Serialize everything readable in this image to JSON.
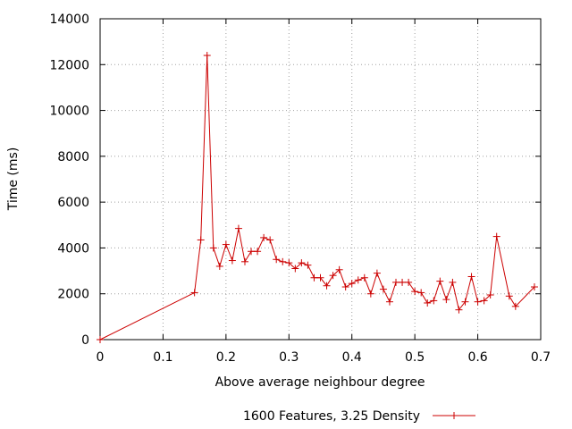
{
  "chart_data": {
    "type": "line",
    "title": "",
    "xlabel": "Above average neighbour degree",
    "ylabel": "Time (ms)",
    "xlim": [
      0,
      0.7
    ],
    "ylim": [
      0,
      14000
    ],
    "x_ticks": [
      "0",
      "0.1",
      "0.2",
      "0.3",
      "0.4",
      "0.5",
      "0.6",
      "0.7"
    ],
    "y_ticks": [
      "0",
      "2000",
      "4000",
      "6000",
      "8000",
      "10000",
      "12000",
      "14000"
    ],
    "x_tick_values": [
      0,
      0.1,
      0.2,
      0.3,
      0.4,
      0.5,
      0.6,
      0.7
    ],
    "y_tick_values": [
      0,
      2000,
      4000,
      6000,
      8000,
      10000,
      12000,
      14000
    ],
    "grid": true,
    "legend_position": "bottom-center",
    "series": [
      {
        "name": "1600 Features, 3.25 Density",
        "color": "#cc0000",
        "marker": "plus",
        "x": [
          0,
          0.15,
          0.16,
          0.17,
          0.18,
          0.19,
          0.2,
          0.21,
          0.22,
          0.23,
          0.24,
          0.25,
          0.26,
          0.27,
          0.28,
          0.29,
          0.3,
          0.31,
          0.32,
          0.33,
          0.34,
          0.35,
          0.36,
          0.37,
          0.38,
          0.39,
          0.4,
          0.41,
          0.42,
          0.43,
          0.44,
          0.45,
          0.46,
          0.47,
          0.48,
          0.49,
          0.5,
          0.51,
          0.52,
          0.53,
          0.54,
          0.55,
          0.56,
          0.57,
          0.58,
          0.59,
          0.6,
          0.61,
          0.62,
          0.63,
          0.65,
          0.66,
          0.69
        ],
        "y": [
          0,
          2050,
          4350,
          12400,
          4000,
          3200,
          4150,
          3450,
          4850,
          3400,
          3850,
          3850,
          4450,
          4350,
          3500,
          3400,
          3350,
          3100,
          3350,
          3250,
          2700,
          2700,
          2350,
          2800,
          3050,
          2300,
          2450,
          2600,
          2700,
          2000,
          2900,
          2200,
          1650,
          2500,
          2500,
          2500,
          2100,
          2050,
          1600,
          1700,
          2550,
          1750,
          2500,
          1300,
          1650,
          2750,
          1650,
          1700,
          1950,
          4500,
          1900,
          1450,
          2300
        ]
      }
    ]
  }
}
